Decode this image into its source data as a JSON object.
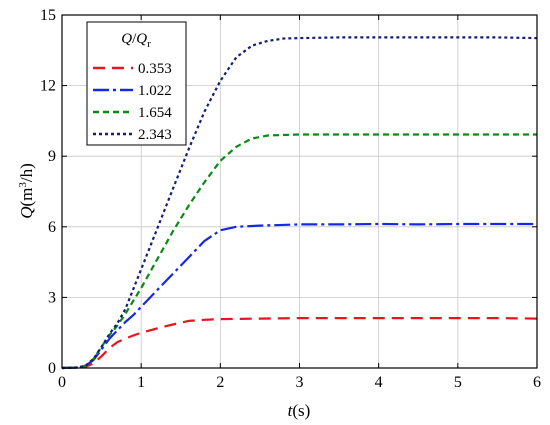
{
  "chart_data": {
    "type": "line",
    "xlabel_var": "t",
    "xlabel_unit": "(s)",
    "ylabel_var": "Q",
    "ylabel_unit_pre": "(m",
    "ylabel_unit_sup": "3",
    "ylabel_unit_post": "/h)",
    "legend_title_a": "Q",
    "legend_title_slash": "/",
    "legend_title_b": "Q",
    "legend_title_sub": "r",
    "xlim": [
      0,
      6
    ],
    "ylim": [
      0,
      15
    ],
    "xticks": [
      "0",
      "1",
      "2",
      "3",
      "4",
      "5",
      "6"
    ],
    "yticks": [
      "0",
      "3",
      "6",
      "9",
      "12",
      "15"
    ],
    "grid": true,
    "legend_position": "top-left",
    "series": [
      {
        "name": "0.353",
        "color": "#e8141e",
        "dash": "12,7",
        "x": [
          0,
          0.2,
          0.3,
          0.4,
          0.5,
          0.6,
          0.7,
          0.8,
          0.9,
          1.0,
          1.2,
          1.4,
          1.6,
          1.8,
          2.0,
          2.5,
          3.0,
          3.5,
          4.0,
          4.5,
          5.0,
          5.5,
          6.0
        ],
        "y": [
          0,
          0.02,
          0.05,
          0.2,
          0.5,
          0.85,
          1.1,
          1.25,
          1.38,
          1.5,
          1.68,
          1.85,
          2.0,
          2.05,
          2.08,
          2.1,
          2.12,
          2.12,
          2.12,
          2.12,
          2.12,
          2.12,
          2.1
        ]
      },
      {
        "name": "1.022",
        "color": "#1428e6",
        "dash": "16,4,3,4",
        "x": [
          0,
          0.2,
          0.3,
          0.4,
          0.5,
          0.6,
          0.7,
          0.8,
          0.9,
          1.0,
          1.2,
          1.4,
          1.6,
          1.8,
          2.0,
          2.2,
          2.5,
          3.0,
          3.5,
          4.0,
          4.5,
          5.0,
          5.5,
          6.0
        ],
        "y": [
          0,
          0.02,
          0.1,
          0.35,
          0.8,
          1.25,
          1.6,
          1.95,
          2.25,
          2.6,
          3.3,
          4.0,
          4.7,
          5.4,
          5.85,
          6.0,
          6.05,
          6.1,
          6.1,
          6.12,
          6.1,
          6.12,
          6.12,
          6.12
        ]
      },
      {
        "name": "1.654",
        "color": "#0a8a14",
        "dash": "6,4",
        "x": [
          0,
          0.2,
          0.3,
          0.4,
          0.5,
          0.6,
          0.7,
          0.8,
          1.0,
          1.2,
          1.4,
          1.6,
          1.8,
          2.0,
          2.2,
          2.4,
          2.6,
          3.0,
          3.5,
          4.0,
          4.5,
          5.0,
          5.5,
          6.0
        ],
        "y": [
          0,
          0.02,
          0.1,
          0.4,
          0.9,
          1.4,
          1.8,
          2.3,
          3.4,
          4.6,
          5.8,
          6.9,
          7.9,
          8.8,
          9.4,
          9.75,
          9.88,
          9.92,
          9.92,
          9.92,
          9.92,
          9.92,
          9.92,
          9.92
        ]
      },
      {
        "name": "2.343",
        "color": "#141e78",
        "dash": "3,3",
        "x": [
          0,
          0.2,
          0.3,
          0.4,
          0.5,
          0.6,
          0.7,
          0.8,
          1.0,
          1.2,
          1.4,
          1.6,
          1.8,
          2.0,
          2.2,
          2.4,
          2.6,
          2.8,
          3.0,
          3.5,
          4.0,
          4.5,
          5.0,
          5.5,
          6.0
        ],
        "y": [
          0,
          0.02,
          0.1,
          0.4,
          0.9,
          1.45,
          1.9,
          2.5,
          4.2,
          5.9,
          7.6,
          9.3,
          10.9,
          12.2,
          13.2,
          13.7,
          13.9,
          14.0,
          14.02,
          14.05,
          14.05,
          14.05,
          14.05,
          14.05,
          14.02
        ]
      }
    ]
  }
}
